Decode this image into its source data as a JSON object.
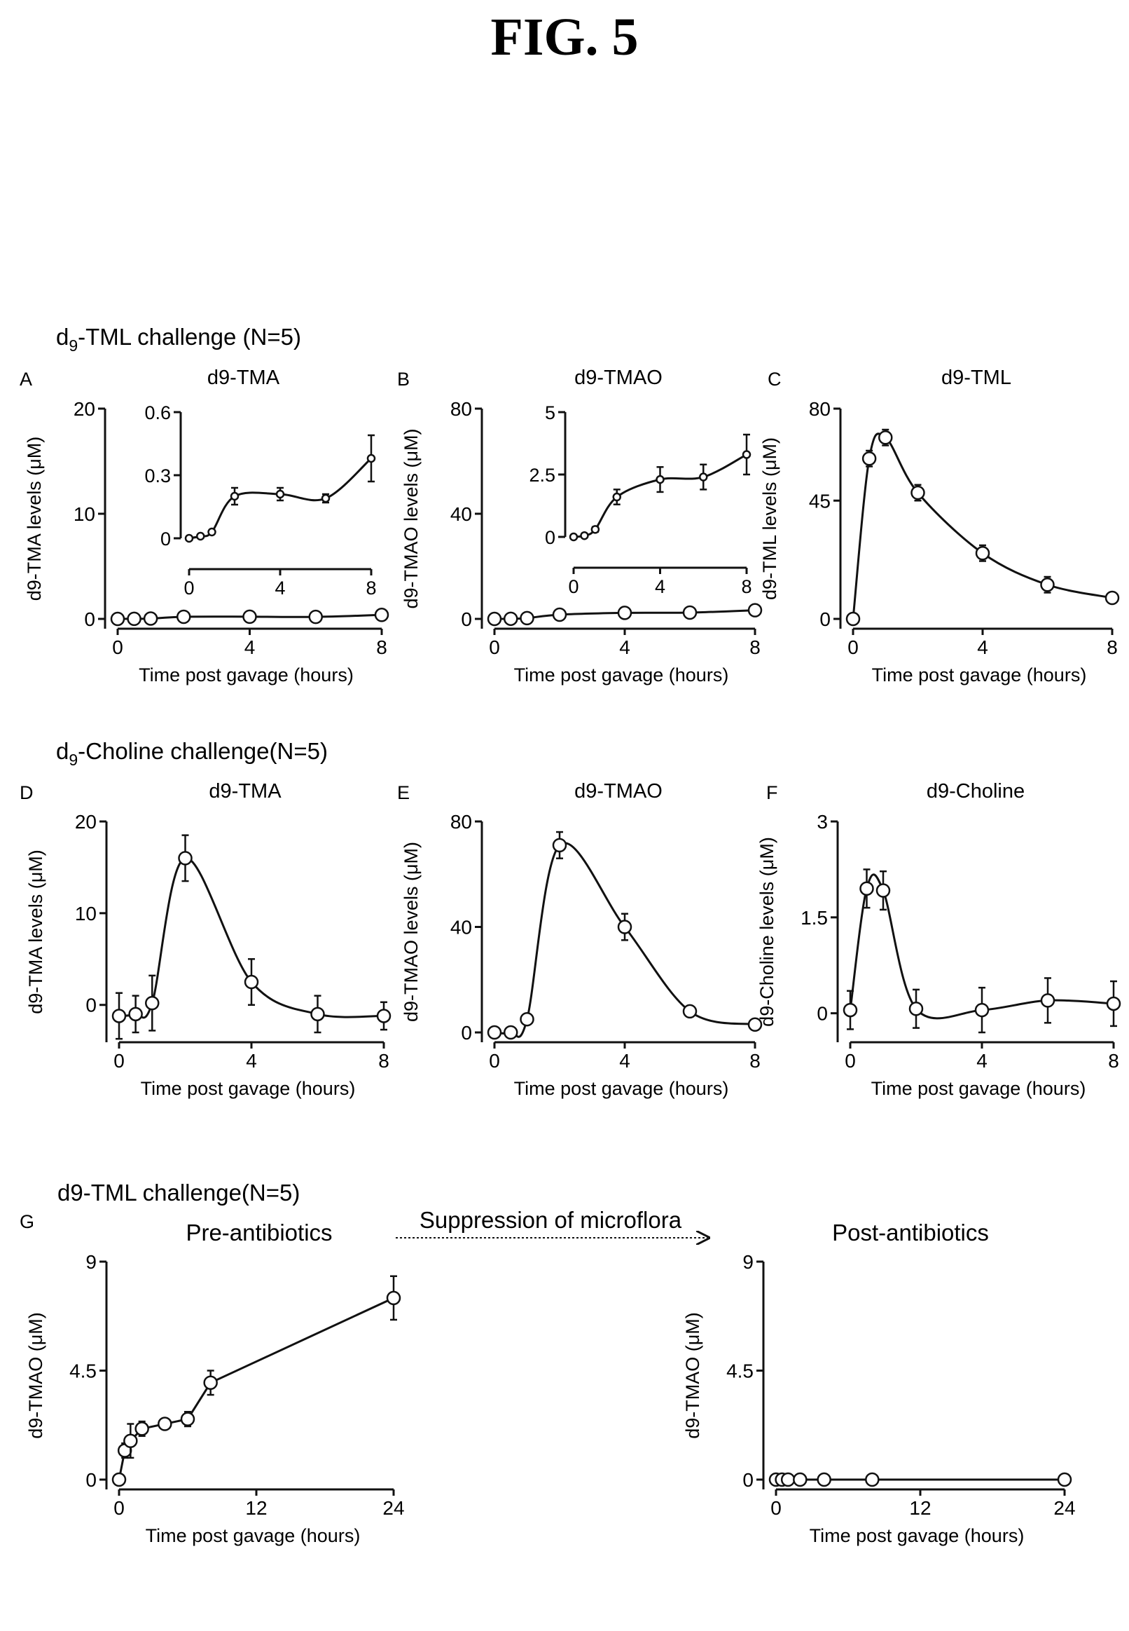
{
  "figure": {
    "title": "FIG. 5",
    "sections": [
      {
        "id": "tml",
        "label": "d",
        "sub": "9",
        "rest": "-TML challenge (N=5)"
      },
      {
        "id": "choline",
        "label": "d",
        "sub": "9",
        "rest": "-Choline challenge(N=5)"
      },
      {
        "id": "antibiotics",
        "label": "d9-TML challenge(N=5)",
        "sub": "",
        "rest": ""
      }
    ],
    "annotations": {
      "pre": "Pre-antibiotics",
      "arrow": "Suppression of microflora",
      "post": "Post-antibiotics"
    }
  },
  "chart_data": [
    {
      "panel": "A",
      "type": "line",
      "title": "d9-TMA",
      "xlabel": "Time post gavage (hours)",
      "ylabel": "d9-TMA levels (μM)",
      "xlim": [
        0,
        8
      ],
      "ylim": [
        0,
        20
      ],
      "xticks": [
        0,
        4,
        8
      ],
      "yticks": [
        0,
        10,
        20
      ],
      "x": [
        0,
        0.5,
        1,
        2,
        4,
        6,
        8
      ],
      "series": [
        {
          "values": [
            0,
            0.01,
            0.03,
            0.2,
            0.21,
            0.19,
            0.38
          ],
          "errors": [
            0,
            0,
            0,
            0.04,
            0.03,
            0.02,
            0.11
          ]
        }
      ],
      "inset": {
        "xlim": [
          0,
          8
        ],
        "ylim": [
          0,
          0.6
        ],
        "xticks": [
          0,
          4,
          8
        ],
        "yticks": [
          0,
          0.3,
          0.6
        ],
        "tick_labels_y": [
          "0",
          "0.3",
          "0.6"
        ]
      }
    },
    {
      "panel": "B",
      "type": "line",
      "title": "d9-TMAO",
      "xlabel": "Time post gavage (hours)",
      "ylabel": "d9-TMAO levels (μM)",
      "xlim": [
        0,
        8
      ],
      "ylim": [
        0,
        80
      ],
      "xticks": [
        0,
        4,
        8
      ],
      "yticks": [
        0,
        40,
        80
      ],
      "x": [
        0,
        0.5,
        1,
        2,
        4,
        6,
        8
      ],
      "series": [
        {
          "values": [
            0,
            0.05,
            0.3,
            1.6,
            2.3,
            2.4,
            3.3
          ],
          "errors": [
            0,
            0,
            0.1,
            0.3,
            0.5,
            0.5,
            0.8
          ]
        }
      ],
      "inset": {
        "xlim": [
          0,
          8
        ],
        "ylim": [
          0,
          5
        ],
        "xticks": [
          0,
          4,
          8
        ],
        "yticks": [
          0,
          2.5,
          5
        ],
        "tick_labels_y": [
          "0",
          "2.5",
          "5"
        ]
      }
    },
    {
      "panel": "C",
      "type": "line",
      "title": "d9-TML",
      "xlabel": "Time post gavage (hours)",
      "ylabel": "d9-TML levels (μM)",
      "xlim": [
        0,
        8
      ],
      "ylim": [
        0,
        80
      ],
      "xticks": [
        0,
        4,
        8
      ],
      "yticks": [
        0,
        45,
        80
      ],
      "x": [
        0,
        0.5,
        1,
        2,
        4,
        6,
        8
      ],
      "series": [
        {
          "values": [
            0,
            61,
            69,
            48,
            25,
            13,
            8
          ],
          "errors": [
            1,
            3,
            3,
            3,
            3,
            3,
            2
          ]
        }
      ]
    },
    {
      "panel": "D",
      "type": "line",
      "title": "d9-TMA",
      "xlabel": "Time post gavage (hours)",
      "ylabel": "d9-TMA levels (μM)",
      "xlim": [
        0,
        8
      ],
      "ylim": [
        -3,
        20
      ],
      "xticks": [
        0,
        4,
        8
      ],
      "yticks": [
        0,
        10,
        20
      ],
      "x": [
        0,
        0.5,
        1,
        2,
        4,
        6,
        8
      ],
      "series": [
        {
          "values": [
            -1.2,
            -1,
            0.2,
            16,
            2.5,
            -1,
            -1.2
          ],
          "errors": [
            2.5,
            2,
            3,
            2.5,
            2.5,
            2,
            1.5
          ]
        }
      ]
    },
    {
      "panel": "E",
      "type": "line",
      "title": "d9-TMAO",
      "xlabel": "Time post gavage (hours)",
      "ylabel": "d9-TMAO levels (μM)",
      "xlim": [
        0,
        8
      ],
      "ylim": [
        0,
        80
      ],
      "xticks": [
        0,
        4,
        8
      ],
      "yticks": [
        0,
        40,
        80
      ],
      "x": [
        0,
        0.5,
        1,
        2,
        4,
        6,
        8
      ],
      "series": [
        {
          "values": [
            0,
            0,
            5,
            71,
            40,
            8,
            3
          ],
          "errors": [
            1,
            1,
            2,
            5,
            5,
            1,
            1
          ]
        }
      ]
    },
    {
      "panel": "F",
      "type": "line",
      "title": "d9-Choline",
      "xlabel": "Time post gavage (hours)",
      "ylabel": "d9-Choline levels (μM)",
      "xlim": [
        0,
        8
      ],
      "ylim": [
        -0.3,
        3
      ],
      "xticks": [
        0,
        4,
        8
      ],
      "yticks": [
        0,
        1.5,
        3
      ],
      "x": [
        0,
        0.5,
        1,
        2,
        4,
        6,
        8
      ],
      "series": [
        {
          "values": [
            0.05,
            1.95,
            1.92,
            0.07,
            0.05,
            0.2,
            0.15
          ],
          "errors": [
            0.3,
            0.3,
            0.3,
            0.3,
            0.35,
            0.35,
            0.35
          ]
        }
      ]
    },
    {
      "panel": "G",
      "type": "line",
      "title": "",
      "xlabel": "Time post gavage (hours)",
      "ylabel": "d9-TMAO (μM)",
      "xlim": [
        0,
        24
      ],
      "ylim": [
        0,
        9
      ],
      "xticks": [
        0,
        12,
        24
      ],
      "yticks": [
        0,
        4.5,
        9
      ],
      "x": [
        0,
        0.5,
        1,
        2,
        4,
        6,
        8,
        24
      ],
      "series": [
        {
          "values": [
            0,
            1.2,
            1.6,
            2.1,
            2.3,
            2.5,
            4,
            7.5
          ],
          "errors": [
            0.2,
            0.3,
            0.7,
            0.3,
            0.2,
            0.3,
            0.5,
            0.9
          ]
        }
      ]
    },
    {
      "panel": "G2",
      "type": "line",
      "title": "",
      "xlabel": "Time post gavage (hours)",
      "ylabel": "d9-TMAO (μM)",
      "xlim": [
        0,
        24
      ],
      "ylim": [
        0,
        9
      ],
      "xticks": [
        0,
        12,
        24
      ],
      "yticks": [
        0,
        4.5,
        9
      ],
      "x": [
        0,
        0.5,
        1,
        2,
        4,
        8,
        24
      ],
      "series": [
        {
          "values": [
            0,
            0,
            0,
            0,
            0,
            0,
            0
          ],
          "errors": [
            0,
            0,
            0,
            0,
            0,
            0,
            0
          ]
        }
      ]
    }
  ]
}
